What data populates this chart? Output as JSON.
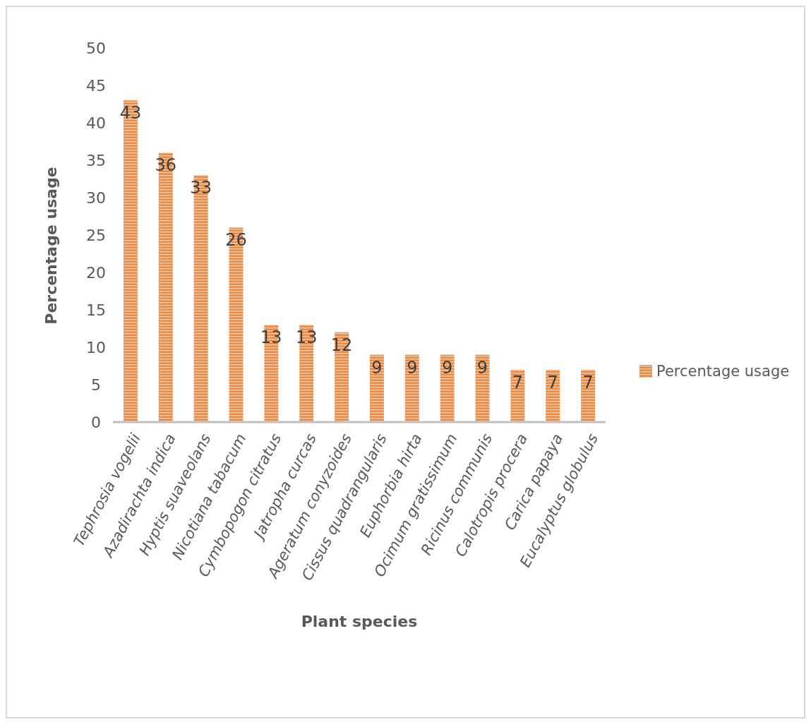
{
  "chart_data": {
    "type": "bar",
    "xlabel": "Plant species",
    "ylabel": "Percentage usage",
    "categories": [
      "Tephrosia vogelii",
      "Azadirachta indica",
      "Hyptis suaveolans",
      "Nicotiana tabacum",
      "Cymbopogon citratus",
      "Jatropha curcas",
      "Ageratum conyzoides",
      "Cissus quadrangularis",
      "Euphorbia hirta",
      "Ocimum gratissimum",
      "Ricinus communis",
      "Calotropis procera",
      "Carica papaya",
      "Eucalyptus globulus"
    ],
    "series": [
      {
        "name": "Percentage usage",
        "color": "#f08a3c",
        "values": [
          43,
          36,
          33,
          26,
          13,
          13,
          12,
          9,
          9,
          9,
          9,
          7,
          7,
          7
        ]
      }
    ],
    "ylim": [
      0,
      50
    ],
    "yticks": [
      0,
      5,
      10,
      15,
      20,
      25,
      30,
      35,
      40,
      45,
      50
    ],
    "data_labels": true,
    "legend": "right",
    "grid": false
  }
}
